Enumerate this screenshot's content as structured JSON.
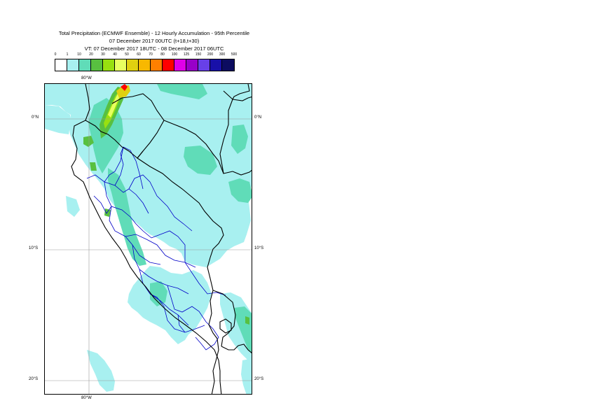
{
  "title": {
    "line1": "Total Precipitation (ECMWF Ensemble) - 12 Hourly Accumulation - 95th Percentile",
    "line2": "07 December 2017 00UTC (t+18,t+30)",
    "line3": "VT: 07 December 2017 18UTC - 08 December 2017 06UTC"
  },
  "legend": {
    "labels": [
      "0",
      "1",
      "10",
      "20",
      "30",
      "40",
      "50",
      "60",
      "70",
      "80",
      "100",
      "125",
      "150",
      "200",
      "300",
      "500"
    ],
    "colors": [
      "#ffffff",
      "#a8f0f0",
      "#60dcb8",
      "#58c040",
      "#98e010",
      "#e8ff60",
      "#e0d010",
      "#f8b800",
      "#ff8000",
      "#ff0000",
      "#e000e8",
      "#9800c8",
      "#6840e8",
      "#1810a8",
      "#0c0c60"
    ]
  },
  "axes": {
    "lon_top": "80°W",
    "lon_bottom": "80°W",
    "lat_left": [
      "0°N",
      "10°S",
      "20°S"
    ],
    "lat_right": [
      "0°N",
      "10°S",
      "20°S"
    ]
  },
  "map_colors": {
    "light": "#a8f0f0",
    "medium": "#60dcb8",
    "green": "#58c040",
    "lime": "#98e010",
    "yellow": "#e8ff60",
    "gold": "#e0d010",
    "red": "#ff0000",
    "border": "#000000",
    "region": "#0000c8",
    "grid": "#9a9a9a"
  }
}
